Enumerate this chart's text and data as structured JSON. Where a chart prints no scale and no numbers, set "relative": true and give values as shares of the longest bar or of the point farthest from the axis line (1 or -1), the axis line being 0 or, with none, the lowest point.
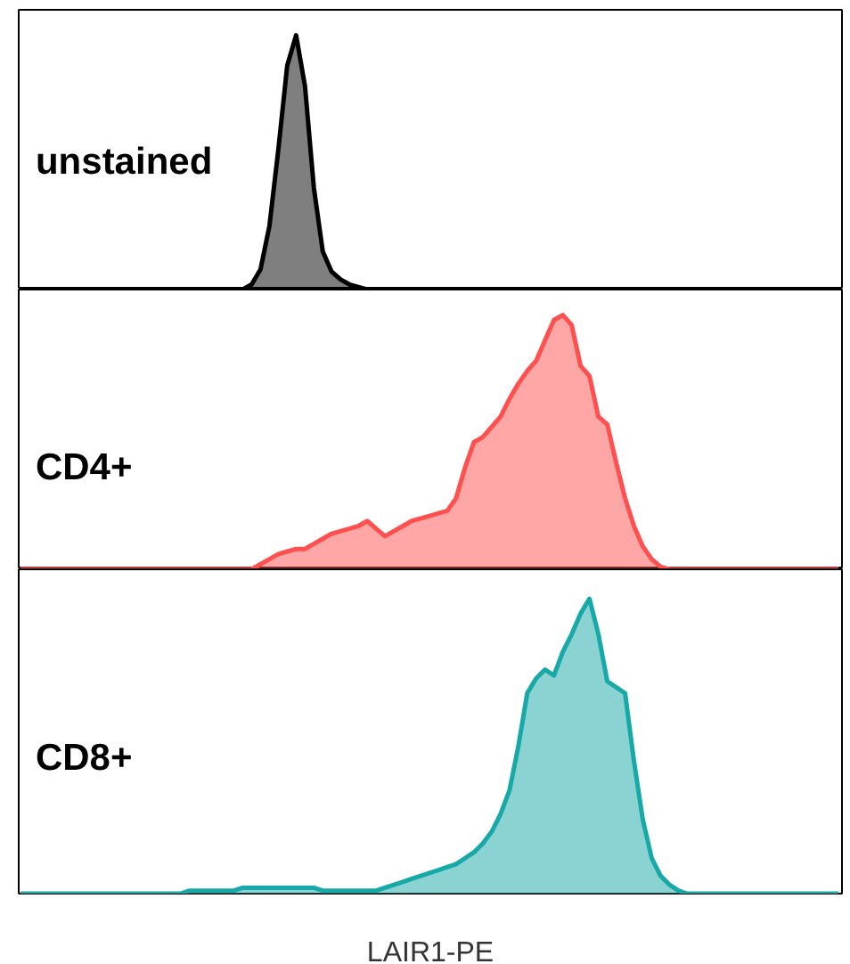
{
  "chart_data": [
    {
      "type": "area",
      "relative": true,
      "categories": [
        null,
        null,
        null,
        null,
        null,
        null,
        null,
        null,
        null,
        null,
        null,
        null,
        null,
        null,
        null,
        null,
        null,
        null,
        null,
        null,
        null,
        null,
        null,
        null,
        null,
        null,
        null,
        null,
        null,
        null,
        null,
        null,
        null,
        null,
        null,
        null,
        null,
        null,
        null,
        null,
        null,
        null,
        null,
        null,
        null,
        null,
        null,
        null,
        null,
        null,
        null,
        null,
        null,
        null,
        null,
        null,
        null,
        null,
        null,
        null,
        null,
        null,
        null,
        null,
        null,
        null,
        null,
        null,
        null,
        null,
        null,
        null,
        null,
        null,
        null,
        null,
        null,
        null,
        null,
        null,
        null,
        null,
        null,
        null,
        null,
        null,
        null,
        null,
        null,
        null,
        null,
        null,
        null
      ],
      "series": [
        {
          "name": "unstained",
          "color": "#000000",
          "values": [
            0,
            0,
            0,
            0,
            0,
            0,
            0,
            0,
            0,
            0,
            0,
            0,
            0,
            0,
            0,
            0,
            0,
            0,
            0,
            0,
            0,
            0,
            0,
            0,
            0,
            0,
            0.02,
            0.08,
            0.25,
            0.55,
            0.88,
            1.0,
            0.8,
            0.4,
            0.15,
            0.07,
            0.04,
            0.02,
            0.01,
            0,
            0,
            0,
            0,
            0,
            0,
            0,
            0,
            0,
            0,
            0,
            0,
            0,
            0,
            0,
            0,
            0,
            0,
            0,
            0,
            0,
            0,
            0,
            0,
            0,
            0,
            0,
            0,
            0,
            0,
            0,
            0,
            0,
            0,
            0,
            0,
            0,
            0,
            0,
            0,
            0,
            0,
            0,
            0,
            0,
            0,
            0,
            0,
            0,
            0,
            0,
            0,
            0,
            0
          ]
        }
      ]
    },
    {
      "type": "area",
      "relative": true,
      "categories": [
        null,
        null,
        null,
        null,
        null,
        null,
        null,
        null,
        null,
        null,
        null,
        null,
        null,
        null,
        null,
        null,
        null,
        null,
        null,
        null,
        null,
        null,
        null,
        null,
        null,
        null,
        null,
        null,
        null,
        null,
        null,
        null,
        null,
        null,
        null,
        null,
        null,
        null,
        null,
        null,
        null,
        null,
        null,
        null,
        null,
        null,
        null,
        null,
        null,
        null,
        null,
        null,
        null,
        null,
        null,
        null,
        null,
        null,
        null,
        null,
        null,
        null,
        null,
        null,
        null,
        null,
        null,
        null,
        null,
        null,
        null,
        null,
        null,
        null,
        null,
        null,
        null,
        null,
        null,
        null,
        null,
        null,
        null,
        null,
        null,
        null,
        null,
        null,
        null,
        null,
        null,
        null,
        null
      ],
      "series": [
        {
          "name": "CD4+",
          "color": "#ff4f4f",
          "values": [
            0,
            0,
            0,
            0,
            0,
            0,
            0,
            0,
            0,
            0,
            0,
            0,
            0,
            0,
            0,
            0,
            0,
            0,
            0,
            0,
            0,
            0,
            0,
            0,
            0,
            0,
            0,
            0.02,
            0.04,
            0.06,
            0.07,
            0.08,
            0.08,
            0.1,
            0.12,
            0.14,
            0.15,
            0.16,
            0.17,
            0.19,
            0.16,
            0.13,
            0.15,
            0.17,
            0.19,
            0.2,
            0.21,
            0.22,
            0.23,
            0.28,
            0.4,
            0.5,
            0.52,
            0.56,
            0.6,
            0.67,
            0.73,
            0.78,
            0.82,
            0.9,
            0.98,
            1.0,
            0.96,
            0.8,
            0.76,
            0.6,
            0.57,
            0.42,
            0.28,
            0.17,
            0.09,
            0.04,
            0.01,
            0,
            0,
            0,
            0,
            0,
            0,
            0,
            0,
            0,
            0,
            0,
            0,
            0,
            0,
            0,
            0,
            0,
            0,
            0,
            0
          ]
        }
      ]
    },
    {
      "type": "area",
      "relative": true,
      "xlabel": "LAIR1-PE",
      "categories": [
        null,
        null,
        null,
        null,
        null,
        null,
        null,
        null,
        null,
        null,
        null,
        null,
        null,
        null,
        null,
        null,
        null,
        null,
        null,
        null,
        null,
        null,
        null,
        null,
        null,
        null,
        null,
        null,
        null,
        null,
        null,
        null,
        null,
        null,
        null,
        null,
        null,
        null,
        null,
        null,
        null,
        null,
        null,
        null,
        null,
        null,
        null,
        null,
        null,
        null,
        null,
        null,
        null,
        null,
        null,
        null,
        null,
        null,
        null,
        null,
        null,
        null,
        null,
        null,
        null,
        null,
        null,
        null,
        null,
        null,
        null,
        null,
        null,
        null,
        null,
        null,
        null,
        null,
        null,
        null,
        null,
        null,
        null,
        null,
        null,
        null,
        null,
        null,
        null,
        null,
        null,
        null,
        null
      ],
      "series": [
        {
          "name": "CD8+",
          "color": "#17a8a8",
          "values": [
            0,
            0,
            0,
            0,
            0,
            0,
            0,
            0,
            0,
            0,
            0,
            0,
            0,
            0,
            0,
            0,
            0,
            0,
            0,
            0.01,
            0.01,
            0.01,
            0.01,
            0.01,
            0.01,
            0.02,
            0.02,
            0.02,
            0.02,
            0.02,
            0.02,
            0.02,
            0.02,
            0.02,
            0.01,
            0.01,
            0.01,
            0.01,
            0.01,
            0.01,
            0.01,
            0.02,
            0.03,
            0.04,
            0.05,
            0.06,
            0.07,
            0.08,
            0.09,
            0.1,
            0.12,
            0.14,
            0.17,
            0.21,
            0.27,
            0.35,
            0.5,
            0.68,
            0.73,
            0.76,
            0.74,
            0.82,
            0.88,
            0.95,
            1.0,
            0.88,
            0.72,
            0.7,
            0.68,
            0.45,
            0.25,
            0.12,
            0.06,
            0.03,
            0.01,
            0,
            0,
            0,
            0,
            0,
            0,
            0,
            0,
            0,
            0,
            0,
            0,
            0,
            0,
            0,
            0,
            0,
            0
          ]
        }
      ]
    }
  ]
}
